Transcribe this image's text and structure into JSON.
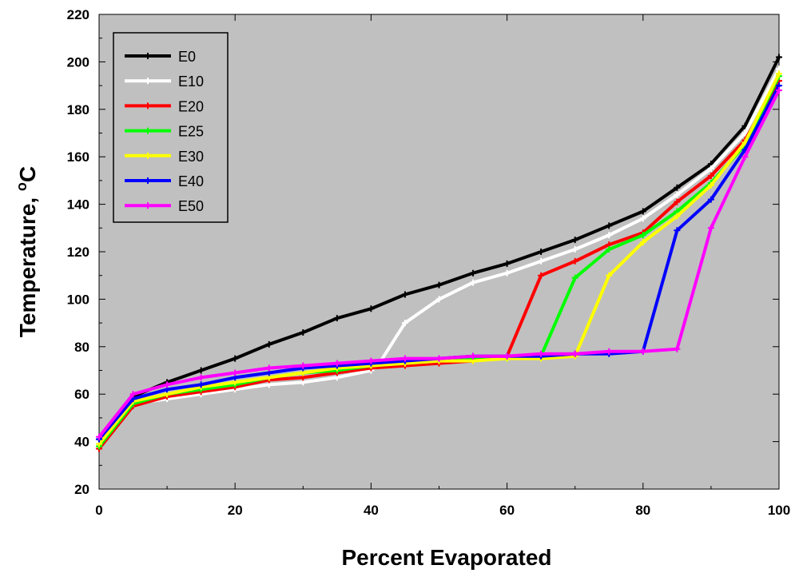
{
  "chart_data": {
    "type": "line",
    "title": "",
    "xlabel": "Percent Evaporated",
    "ylabel_main": "Temperature, ",
    "ylabel_sup": "o",
    "ylabel_unit": "C",
    "xlim": [
      0,
      100
    ],
    "ylim": [
      20,
      220
    ],
    "xticks": [
      "0",
      "20",
      "40",
      "60",
      "80",
      "100"
    ],
    "yticks": [
      "20",
      "40",
      "60",
      "80",
      "100",
      "120",
      "140",
      "160",
      "180",
      "200",
      "220"
    ],
    "grid": false,
    "legend_position": "top-left",
    "plot_background": "#c0c0c0",
    "series": [
      {
        "name": "E0",
        "color": "#000000",
        "x": [
          0,
          5,
          10,
          15,
          20,
          25,
          30,
          35,
          40,
          45,
          50,
          55,
          60,
          65,
          70,
          75,
          80,
          85,
          90,
          95,
          100
        ],
        "y": [
          41,
          59,
          65,
          70,
          75,
          81,
          86,
          92,
          96,
          102,
          106,
          111,
          115,
          120,
          125,
          131,
          137,
          147,
          157,
          173,
          202
        ]
      },
      {
        "name": "E10",
        "color": "#ffffff",
        "x": [
          0,
          5,
          10,
          15,
          20,
          25,
          30,
          35,
          40,
          41,
          45,
          50,
          55,
          60,
          65,
          70,
          75,
          80,
          85,
          90,
          95,
          100
        ],
        "y": [
          40,
          56,
          58,
          60,
          62,
          64,
          65,
          67,
          70,
          72,
          90,
          100,
          107,
          111,
          116,
          121,
          127,
          134,
          144,
          155,
          170,
          197
        ]
      },
      {
        "name": "E20",
        "color": "#ff0000",
        "x": [
          0,
          5,
          10,
          15,
          20,
          25,
          30,
          35,
          40,
          45,
          50,
          55,
          60,
          65,
          70,
          75,
          80,
          85,
          90,
          95,
          100
        ],
        "y": [
          37,
          55,
          59,
          61,
          63,
          66,
          67,
          69,
          71,
          72,
          73,
          74,
          76,
          110,
          116,
          123,
          128,
          141,
          152,
          167,
          192
        ]
      },
      {
        "name": "E25",
        "color": "#00ff00",
        "x": [
          0,
          5,
          10,
          15,
          20,
          25,
          30,
          35,
          40,
          45,
          50,
          55,
          60,
          65,
          70,
          75,
          80,
          85,
          90,
          95,
          100
        ],
        "y": [
          38,
          56,
          60,
          62,
          64,
          67,
          69,
          70,
          72,
          73,
          74,
          75,
          75,
          76,
          109,
          121,
          127,
          137,
          149,
          165,
          194
        ]
      },
      {
        "name": "E30",
        "color": "#ffff00",
        "x": [
          0,
          5,
          10,
          15,
          20,
          25,
          30,
          35,
          40,
          45,
          50,
          55,
          60,
          65,
          70,
          75,
          80,
          85,
          90,
          95,
          100
        ],
        "y": [
          39,
          57,
          60,
          63,
          65,
          67,
          69,
          71,
          72,
          73,
          74,
          74,
          75,
          75,
          76,
          110,
          124,
          135,
          148,
          166,
          195
        ]
      },
      {
        "name": "E40",
        "color": "#0000ff",
        "x": [
          0,
          5,
          10,
          15,
          20,
          25,
          30,
          35,
          40,
          45,
          50,
          55,
          60,
          65,
          70,
          75,
          80,
          85,
          90,
          95,
          100
        ],
        "y": [
          41,
          58,
          62,
          64,
          67,
          69,
          71,
          72,
          73,
          74,
          75,
          76,
          76,
          76,
          77,
          77,
          78,
          129,
          142,
          163,
          190
        ]
      },
      {
        "name": "E50",
        "color": "#ff00ff",
        "x": [
          0,
          5,
          10,
          15,
          20,
          25,
          30,
          35,
          40,
          45,
          50,
          55,
          60,
          65,
          70,
          75,
          80,
          85,
          90,
          95,
          100
        ],
        "y": [
          42,
          60,
          64,
          67,
          69,
          71,
          72,
          73,
          74,
          75,
          75,
          76,
          76,
          77,
          77,
          78,
          78,
          79,
          130,
          160,
          188
        ]
      }
    ]
  }
}
